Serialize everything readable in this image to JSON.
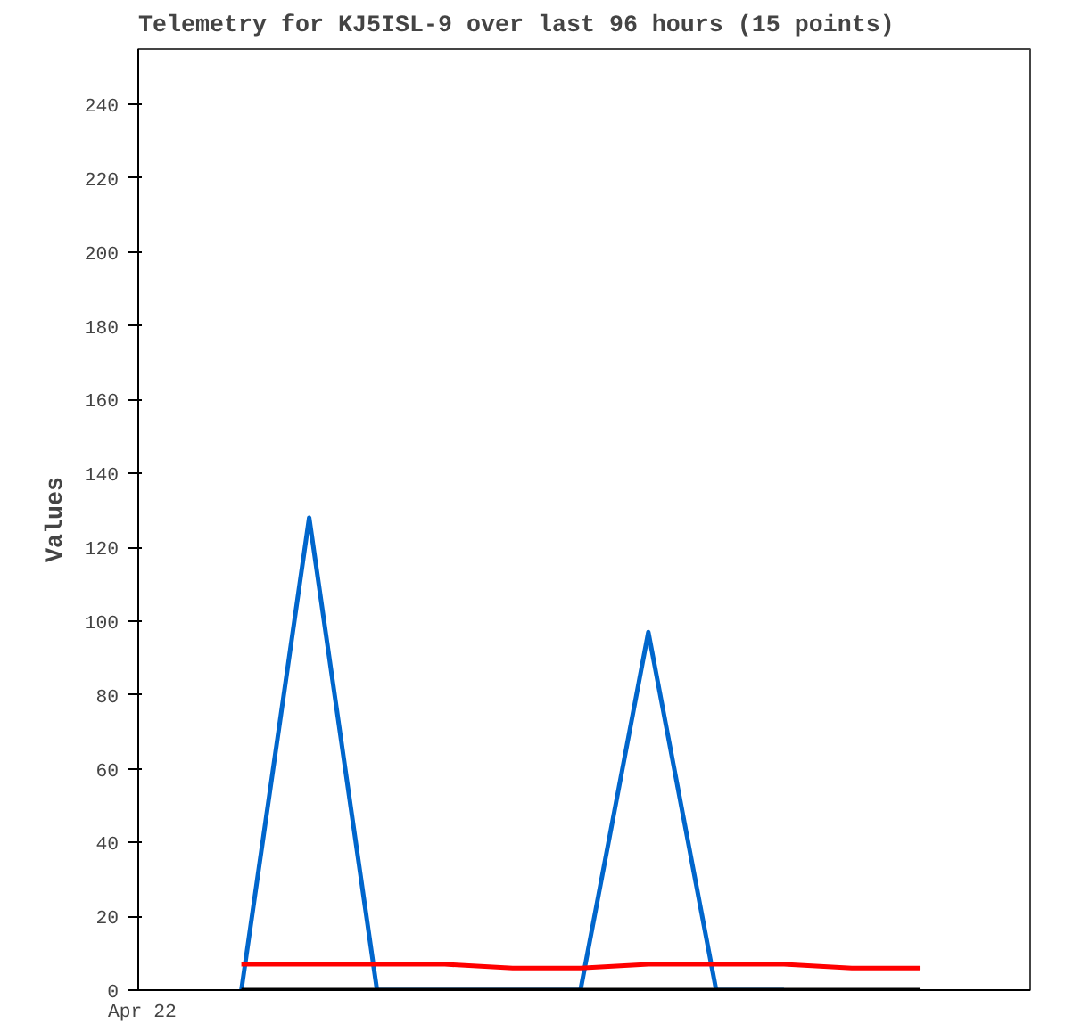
{
  "chart_data": {
    "type": "line",
    "title": "Telemetry for KJ5ISL-9 over last 96 hours (15 points)",
    "ylabel": "Values",
    "annotations": [
      "Apr 22"
    ],
    "categories": [
      null,
      null,
      null,
      null,
      null,
      null,
      null,
      null,
      null,
      null,
      null
    ],
    "ylim": [
      0,
      255
    ],
    "yticks": [
      0,
      20,
      40,
      60,
      80,
      100,
      120,
      140,
      160,
      180,
      200,
      220,
      240
    ],
    "grid": false,
    "marker": "none",
    "line_style": "solid",
    "series": [
      {
        "color": "#0066cc",
        "values": [
          0,
          128,
          0,
          0,
          0,
          0,
          97,
          0,
          0,
          null,
          null
        ]
      },
      {
        "color": "#ff0000",
        "values": [
          7,
          7,
          7,
          7,
          6,
          6,
          7,
          7,
          7,
          6,
          6
        ]
      },
      {
        "color": "#000000",
        "values": [
          0,
          0,
          0,
          0,
          0,
          0,
          0,
          0,
          0,
          0,
          0
        ]
      }
    ]
  }
}
